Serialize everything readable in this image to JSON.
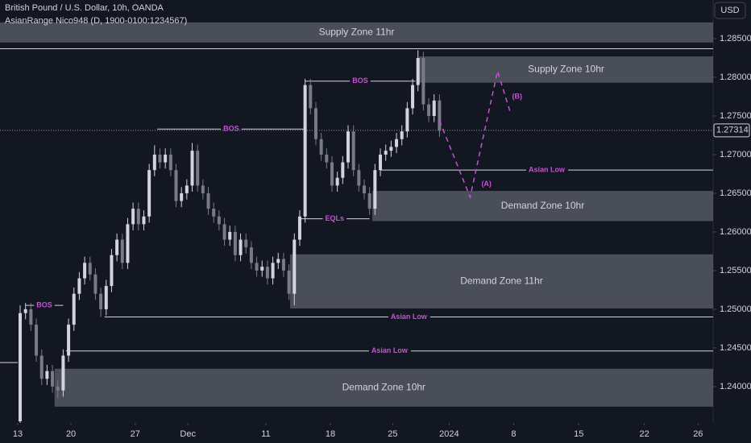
{
  "chart_data": {
    "type": "candlestick",
    "title": "British Pound / U.S. Dollar, 10h, OANDA",
    "subtitle": "AsianRange Nico948 (D, 1900-0100:1234567)",
    "currency": "USD",
    "up_color": "#d1d4dc",
    "down_color": "#787b86",
    "x": [
      0,
      1,
      2,
      3,
      4,
      5,
      6,
      7,
      8,
      9,
      10,
      11,
      12,
      13,
      14,
      15,
      16,
      17,
      18,
      19,
      20,
      21,
      22,
      23,
      24,
      25,
      26,
      27,
      28,
      29,
      30,
      31,
      32,
      33,
      34,
      35,
      36,
      37,
      38,
      39,
      40,
      41,
      42,
      43,
      44,
      45,
      46,
      47,
      48,
      49,
      50,
      51,
      52,
      53,
      54,
      55,
      56,
      57,
      58,
      59,
      60,
      61,
      62,
      63,
      64,
      65,
      66,
      67,
      68,
      69,
      70,
      71,
      72,
      73,
      74,
      75,
      76,
      77,
      78
    ],
    "ohlc": [
      [
        1.2355,
        1.2505,
        1.2353,
        1.2495
      ],
      [
        1.2495,
        1.2508,
        1.2487,
        1.25
      ],
      [
        1.25,
        1.2508,
        1.2472,
        1.248
      ],
      [
        1.248,
        1.2488,
        1.2432,
        1.244
      ],
      [
        1.244,
        1.2448,
        1.2402,
        1.241
      ],
      [
        1.241,
        1.2428,
        1.2402,
        1.242
      ],
      [
        1.242,
        1.2428,
        1.2392,
        1.24
      ],
      [
        1.24,
        1.2408,
        1.2385,
        1.2395
      ],
      [
        1.2395,
        1.2448,
        1.2387,
        1.244
      ],
      [
        1.244,
        1.2488,
        1.2432,
        1.248
      ],
      [
        1.248,
        1.2528,
        1.2472,
        1.252
      ],
      [
        1.252,
        1.2548,
        1.2512,
        1.254
      ],
      [
        1.254,
        1.2568,
        1.2532,
        1.256
      ],
      [
        1.256,
        1.2568,
        1.2537,
        1.2545
      ],
      [
        1.2545,
        1.2553,
        1.2512,
        1.252
      ],
      [
        1.252,
        1.2528,
        1.249,
        1.25
      ],
      [
        1.25,
        1.2538,
        1.2492,
        1.253
      ],
      [
        1.253,
        1.2578,
        1.2522,
        1.257
      ],
      [
        1.257,
        1.2598,
        1.2562,
        1.259
      ],
      [
        1.259,
        1.2598,
        1.2552,
        1.256
      ],
      [
        1.256,
        1.2618,
        1.2552,
        1.261
      ],
      [
        1.261,
        1.2638,
        1.2602,
        1.263
      ],
      [
        1.263,
        1.2638,
        1.2602,
        1.261
      ],
      [
        1.261,
        1.2628,
        1.2602,
        1.262
      ],
      [
        1.262,
        1.2688,
        1.2612,
        1.268
      ],
      [
        1.268,
        1.2712,
        1.2672,
        1.27
      ],
      [
        1.27,
        1.2708,
        1.2682,
        1.269
      ],
      [
        1.269,
        1.2708,
        1.2682,
        1.27
      ],
      [
        1.27,
        1.2708,
        1.2672,
        1.268
      ],
      [
        1.268,
        1.2688,
        1.2632,
        1.264
      ],
      [
        1.264,
        1.2658,
        1.2632,
        1.265
      ],
      [
        1.265,
        1.2668,
        1.2642,
        1.266
      ],
      [
        1.266,
        1.2715,
        1.2652,
        1.2705
      ],
      [
        1.2705,
        1.2713,
        1.2652,
        1.266
      ],
      [
        1.266,
        1.2668,
        1.2642,
        1.265
      ],
      [
        1.265,
        1.2658,
        1.2622,
        1.263
      ],
      [
        1.263,
        1.2638,
        1.2612,
        1.262
      ],
      [
        1.262,
        1.2628,
        1.2602,
        1.261
      ],
      [
        1.261,
        1.2618,
        1.2582,
        1.259
      ],
      [
        1.259,
        1.2608,
        1.2582,
        1.26
      ],
      [
        1.26,
        1.2608,
        1.2562,
        1.257
      ],
      [
        1.257,
        1.2598,
        1.2562,
        1.259
      ],
      [
        1.259,
        1.2598,
        1.2572,
        1.258
      ],
      [
        1.258,
        1.2588,
        1.2552,
        1.256
      ],
      [
        1.256,
        1.2568,
        1.2542,
        1.255
      ],
      [
        1.255,
        1.2563,
        1.2542,
        1.2555
      ],
      [
        1.2555,
        1.2563,
        1.2532,
        1.254
      ],
      [
        1.254,
        1.2568,
        1.2532,
        1.256
      ],
      [
        1.256,
        1.2573,
        1.2552,
        1.2565
      ],
      [
        1.2565,
        1.2573,
        1.2542,
        1.255
      ],
      [
        1.255,
        1.2558,
        1.2512,
        1.252
      ],
      [
        1.252,
        1.2598,
        1.2505,
        1.259
      ],
      [
        1.259,
        1.2628,
        1.2582,
        1.262
      ],
      [
        1.262,
        1.2798,
        1.2612,
        1.279
      ],
      [
        1.279,
        1.2798,
        1.2752,
        1.276
      ],
      [
        1.276,
        1.2768,
        1.2712,
        1.272
      ],
      [
        1.272,
        1.2728,
        1.2692,
        1.27
      ],
      [
        1.27,
        1.2708,
        1.2682,
        1.269
      ],
      [
        1.269,
        1.2698,
        1.2652,
        1.266
      ],
      [
        1.266,
        1.2678,
        1.2652,
        1.267
      ],
      [
        1.267,
        1.2698,
        1.2662,
        1.269
      ],
      [
        1.269,
        1.2738,
        1.2682,
        1.273
      ],
      [
        1.273,
        1.2738,
        1.2672,
        1.268
      ],
      [
        1.268,
        1.2688,
        1.2652,
        1.266
      ],
      [
        1.266,
        1.2668,
        1.2642,
        1.265
      ],
      [
        1.265,
        1.2658,
        1.2622,
        1.263
      ],
      [
        1.263,
        1.2688,
        1.2622,
        1.268
      ],
      [
        1.268,
        1.2708,
        1.2672,
        1.27
      ],
      [
        1.27,
        1.2713,
        1.2692,
        1.2705
      ],
      [
        1.2705,
        1.2718,
        1.2697,
        1.271
      ],
      [
        1.271,
        1.2728,
        1.2702,
        1.272
      ],
      [
        1.272,
        1.2738,
        1.2712,
        1.273
      ],
      [
        1.273,
        1.2768,
        1.2722,
        1.276
      ],
      [
        1.276,
        1.2798,
        1.2752,
        1.279
      ],
      [
        1.279,
        1.2835,
        1.2782,
        1.2825
      ],
      [
        1.2825,
        1.2833,
        1.2757,
        1.2765
      ],
      [
        1.2765,
        1.2773,
        1.2742,
        1.275
      ],
      [
        1.275,
        1.2778,
        1.2742,
        1.277
      ],
      [
        1.277,
        1.2778,
        1.2723,
        1.2731
      ]
    ],
    "xlim": [
      -3.75,
      128.9
    ],
    "xticks": [
      {
        "value": -0.45,
        "label": "13"
      },
      {
        "value": 9.45,
        "label": "20"
      },
      {
        "value": 21.4,
        "label": "27"
      },
      {
        "value": 31.2,
        "label": "Dec"
      },
      {
        "value": 45.7,
        "label": "11"
      },
      {
        "value": 57.7,
        "label": "18"
      },
      {
        "value": 69.3,
        "label": "25"
      },
      {
        "value": 79.8,
        "label": "2024"
      },
      {
        "value": 91.8,
        "label": "8"
      },
      {
        "value": 103.9,
        "label": "15"
      },
      {
        "value": 116.1,
        "label": "22"
      },
      {
        "value": 126.1,
        "label": "26"
      }
    ],
    "ylim": [
      1.2353,
      1.29
    ],
    "yticks": [
      {
        "value": 1.24,
        "label": "1.24000"
      },
      {
        "value": 1.245,
        "label": "1.24500"
      },
      {
        "value": 1.25,
        "label": "1.25000"
      },
      {
        "value": 1.255,
        "label": "1.25500"
      },
      {
        "value": 1.26,
        "label": "1.26000"
      },
      {
        "value": 1.265,
        "label": "1.26500"
      },
      {
        "value": 1.27,
        "label": "1.27000"
      },
      {
        "value": 1.275,
        "label": "1.27500"
      },
      {
        "value": 1.28,
        "label": "1.28000"
      },
      {
        "value": 1.285,
        "label": "1.28500"
      }
    ],
    "last_price": 1.27314,
    "zones": [
      {
        "label": "Supply Zone 11hr",
        "prices": [
          1.2871,
          1.2845
        ],
        "from": -3.75
      },
      {
        "label": "Supply Zone 10hr",
        "prices": [
          1.2827,
          1.2793
        ],
        "from": 74.2
      },
      {
        "label": "Demand Zone 10hr",
        "prices": [
          1.2653,
          1.2614
        ],
        "from": 65.5
      },
      {
        "label": "Demand Zone 11hr",
        "prices": [
          1.2571,
          1.2501
        ],
        "from": 50.2
      },
      {
        "label": "Demand Zone 10hr",
        "prices": [
          1.2423,
          1.2374
        ],
        "from": 6.4
      }
    ],
    "levels": [
      {
        "label": "Asian Low",
        "price": 1.268,
        "from": 67
      },
      {
        "label": "Asian Low",
        "price": 1.249,
        "from": 15.7
      },
      {
        "label": "Asian Low",
        "price": 1.2446,
        "from": 8.5
      },
      {
        "label": "BOS",
        "price": 1.2733,
        "from": 25.5,
        "to": 53
      },
      {
        "label": "BOS",
        "price": 1.2795,
        "from": 53,
        "to": 73.5
      },
      {
        "label": "BOS",
        "price": 1.2505,
        "from": 1,
        "to": 8
      },
      {
        "label": "EQLs",
        "price": 1.2617,
        "from": 52,
        "to": 65
      }
    ],
    "lines": [
      {
        "price": 1.2837,
        "from": -3.75
      },
      {
        "price": 1.2431,
        "from": -3.75,
        "to": -0.45
      }
    ],
    "projection": {
      "color": "#c850d8",
      "x": [
        78,
        83.7,
        88.8,
        91.2
      ],
      "prices": [
        1.2744,
        1.2645,
        1.2808,
        1.2754
      ],
      "labels": [
        "(A)",
        "(B)"
      ]
    }
  }
}
